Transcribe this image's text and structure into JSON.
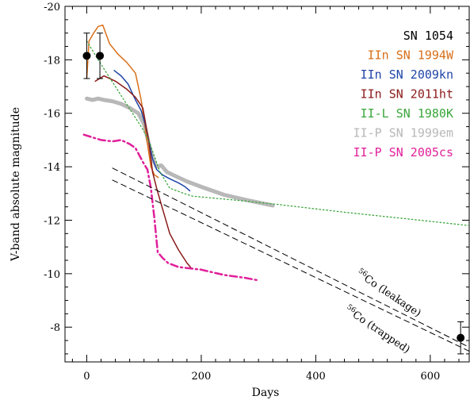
{
  "chart_data": {
    "type": "line",
    "xlabel": "Days",
    "ylabel": "V-band absolute magnitude",
    "xlim": [
      -38,
      668
    ],
    "ylim": [
      -20,
      -6.7
    ],
    "y_inverted": true,
    "x_ticks": [
      0,
      200,
      400,
      600
    ],
    "x_tick_labels": [
      "0",
      "200",
      "400",
      "600"
    ],
    "y_ticks": [
      -20,
      -18,
      -16,
      -14,
      -12,
      -10,
      -8
    ],
    "y_tick_labels": [
      "-20",
      "-18",
      "-16",
      "-14",
      "-12",
      "-10",
      "-8"
    ],
    "grid": false,
    "legend": "top-right",
    "series": [
      {
        "name": "SN 1054",
        "color": "#000000",
        "style": "points-with-errorbars",
        "points": [
          {
            "x": 0,
            "y": -18.15,
            "err": 0.85
          },
          {
            "x": 23,
            "y": -18.15,
            "err": 0.85
          },
          {
            "x": 653,
            "y": -7.6,
            "err": 0.6
          }
        ]
      },
      {
        "name": "IIn SN 1994W",
        "color": "#d86f1a",
        "style": "solid",
        "x": [
          0,
          4,
          12,
          20,
          28,
          40,
          55,
          70,
          85,
          95,
          105,
          112,
          118,
          125
        ],
        "y": [
          -17.3,
          -18.7,
          -19.0,
          -19.25,
          -19.3,
          -18.6,
          -18.2,
          -17.9,
          -17.5,
          -16.5,
          -15.0,
          -14.0,
          -13.7,
          -13.6
        ]
      },
      {
        "name": "IIn SN 2009kn",
        "color": "#1f45a8",
        "style": "solid",
        "x": [
          48,
          60,
          72,
          85,
          95,
          102,
          108,
          115,
          122,
          132,
          145,
          160,
          172,
          180
        ],
        "y": [
          -17.6,
          -17.4,
          -17.1,
          -16.5,
          -16.1,
          -15.6,
          -15.0,
          -14.3,
          -13.9,
          -13.7,
          -13.55,
          -13.4,
          -13.25,
          -13.1
        ]
      },
      {
        "name": "IIn SN 2011ht",
        "color": "#8b1a1a",
        "style": "solid",
        "x": [
          15,
          30,
          50,
          70,
          85,
          98,
          108,
          115,
          122,
          130,
          145,
          160,
          175,
          183
        ],
        "y": [
          -17.2,
          -17.4,
          -17.2,
          -16.9,
          -16.6,
          -16.2,
          -15.0,
          -13.8,
          -13.2,
          -12.6,
          -11.5,
          -10.9,
          -10.4,
          -10.2
        ]
      },
      {
        "name": "II-L SN 1980K",
        "color": "#3aa63a",
        "style": "dotted",
        "x": [
          0,
          20,
          35,
          50,
          65,
          80,
          95,
          108,
          118,
          128,
          145,
          170,
          185,
          260,
          330,
          450,
          560,
          668
        ],
        "y": [
          -18.7,
          -18.0,
          -17.5,
          -17.0,
          -16.5,
          -16.0,
          -15.5,
          -15.0,
          -14.4,
          -13.8,
          -13.2,
          -13.0,
          -12.9,
          -12.75,
          -12.6,
          -12.3,
          -12.05,
          -11.8
        ]
      },
      {
        "name": "II-P SN 1999em",
        "color": "#b8b8b8",
        "style": "thick",
        "x": [
          0,
          10,
          20,
          30,
          45,
          60,
          75,
          90,
          100,
          108,
          115,
          122,
          130,
          140,
          155,
          175,
          200,
          240,
          280,
          325
        ],
        "y": [
          -16.55,
          -16.5,
          -16.55,
          -16.5,
          -16.45,
          -16.35,
          -16.2,
          -16.0,
          -15.6,
          -14.9,
          -14.3,
          -14.0,
          -14.05,
          -13.8,
          -13.65,
          -13.45,
          -13.25,
          -12.95,
          -12.75,
          -12.55
        ]
      },
      {
        "name": "II-P SN 2005cs",
        "color": "#e0209a",
        "style": "dash-dot",
        "x": [
          -5,
          10,
          25,
          45,
          60,
          75,
          85,
          95,
          100,
          106,
          112,
          118,
          124,
          132,
          142,
          160,
          180,
          200,
          240,
          275,
          300
        ],
        "y": [
          -15.2,
          -15.1,
          -15.0,
          -14.95,
          -15.0,
          -14.85,
          -14.7,
          -14.3,
          -14.1,
          -13.9,
          -13.2,
          -12.1,
          -10.8,
          -10.6,
          -10.4,
          -10.25,
          -10.2,
          -10.15,
          -9.95,
          -9.85,
          -9.75
        ]
      },
      {
        "name": "56Co (leakage)",
        "color": "#000000",
        "style": "dashed",
        "x": [
          45,
          668
        ],
        "y": [
          -13.95,
          -7.25
        ]
      },
      {
        "name": "56Co (trapped)",
        "color": "#000000",
        "style": "dashed",
        "x": [
          45,
          668
        ],
        "y": [
          -13.5,
          -7.1
        ]
      }
    ],
    "legend_entries": [
      {
        "label": "SN 1054",
        "color": "#000000"
      },
      {
        "label": "IIn SN 1994W",
        "color": "#d86f1a"
      },
      {
        "label": "IIn SN 2009kn",
        "color": "#1f45a8"
      },
      {
        "label": "IIn SN 2011ht",
        "color": "#8b1a1a"
      },
      {
        "label": "II-L SN 1980K",
        "color": "#3aa63a"
      },
      {
        "label": "II-P SN 1999em",
        "color": "#b8b8b8"
      },
      {
        "label": "II-P SN 2005cs",
        "color": "#e0209a"
      }
    ],
    "annotations": [
      {
        "sup": "56",
        "text": "Co (leakage)",
        "x": 470,
        "y": -9.95,
        "angle": 34
      },
      {
        "sup": "56",
        "text": "Co (trapped)",
        "x": 450,
        "y": -8.6,
        "angle": 34
      }
    ]
  }
}
